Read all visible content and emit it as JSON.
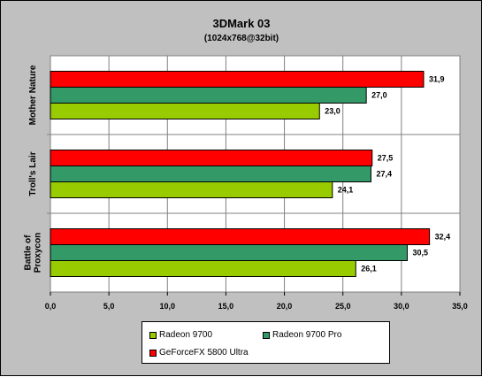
{
  "chart_data": {
    "type": "bar",
    "orientation": "horizontal",
    "title": "3DMark 03",
    "subtitle": "(1024x768@32bit)",
    "categories": [
      "Mother Nature",
      "Troll's Lair",
      "Battle of Proxycon"
    ],
    "series": [
      {
        "name": "Radeon 9700",
        "color": "#99cc00",
        "values": [
          23.0,
          24.1,
          26.1
        ],
        "labels": [
          "23,0",
          "24,1",
          "26,1"
        ]
      },
      {
        "name": "Radeon 9700 Pro",
        "color": "#339966",
        "values": [
          27.0,
          27.4,
          30.5
        ],
        "labels": [
          "27,0",
          "27,4",
          "30,5"
        ]
      },
      {
        "name": "GeForceFX 5800 Ultra",
        "color": "#ff0000",
        "values": [
          31.9,
          27.5,
          32.4
        ],
        "labels": [
          "31,9",
          "27,5",
          "32,4"
        ]
      }
    ],
    "xlim": [
      0,
      35
    ],
    "xticks": [
      0,
      5,
      10,
      15,
      20,
      25,
      30,
      35
    ],
    "xtick_labels": [
      "0,0",
      "5,0",
      "10,0",
      "15,0",
      "20,0",
      "25,0",
      "30,0",
      "35,0"
    ],
    "grid": true,
    "legend_position": "bottom"
  }
}
